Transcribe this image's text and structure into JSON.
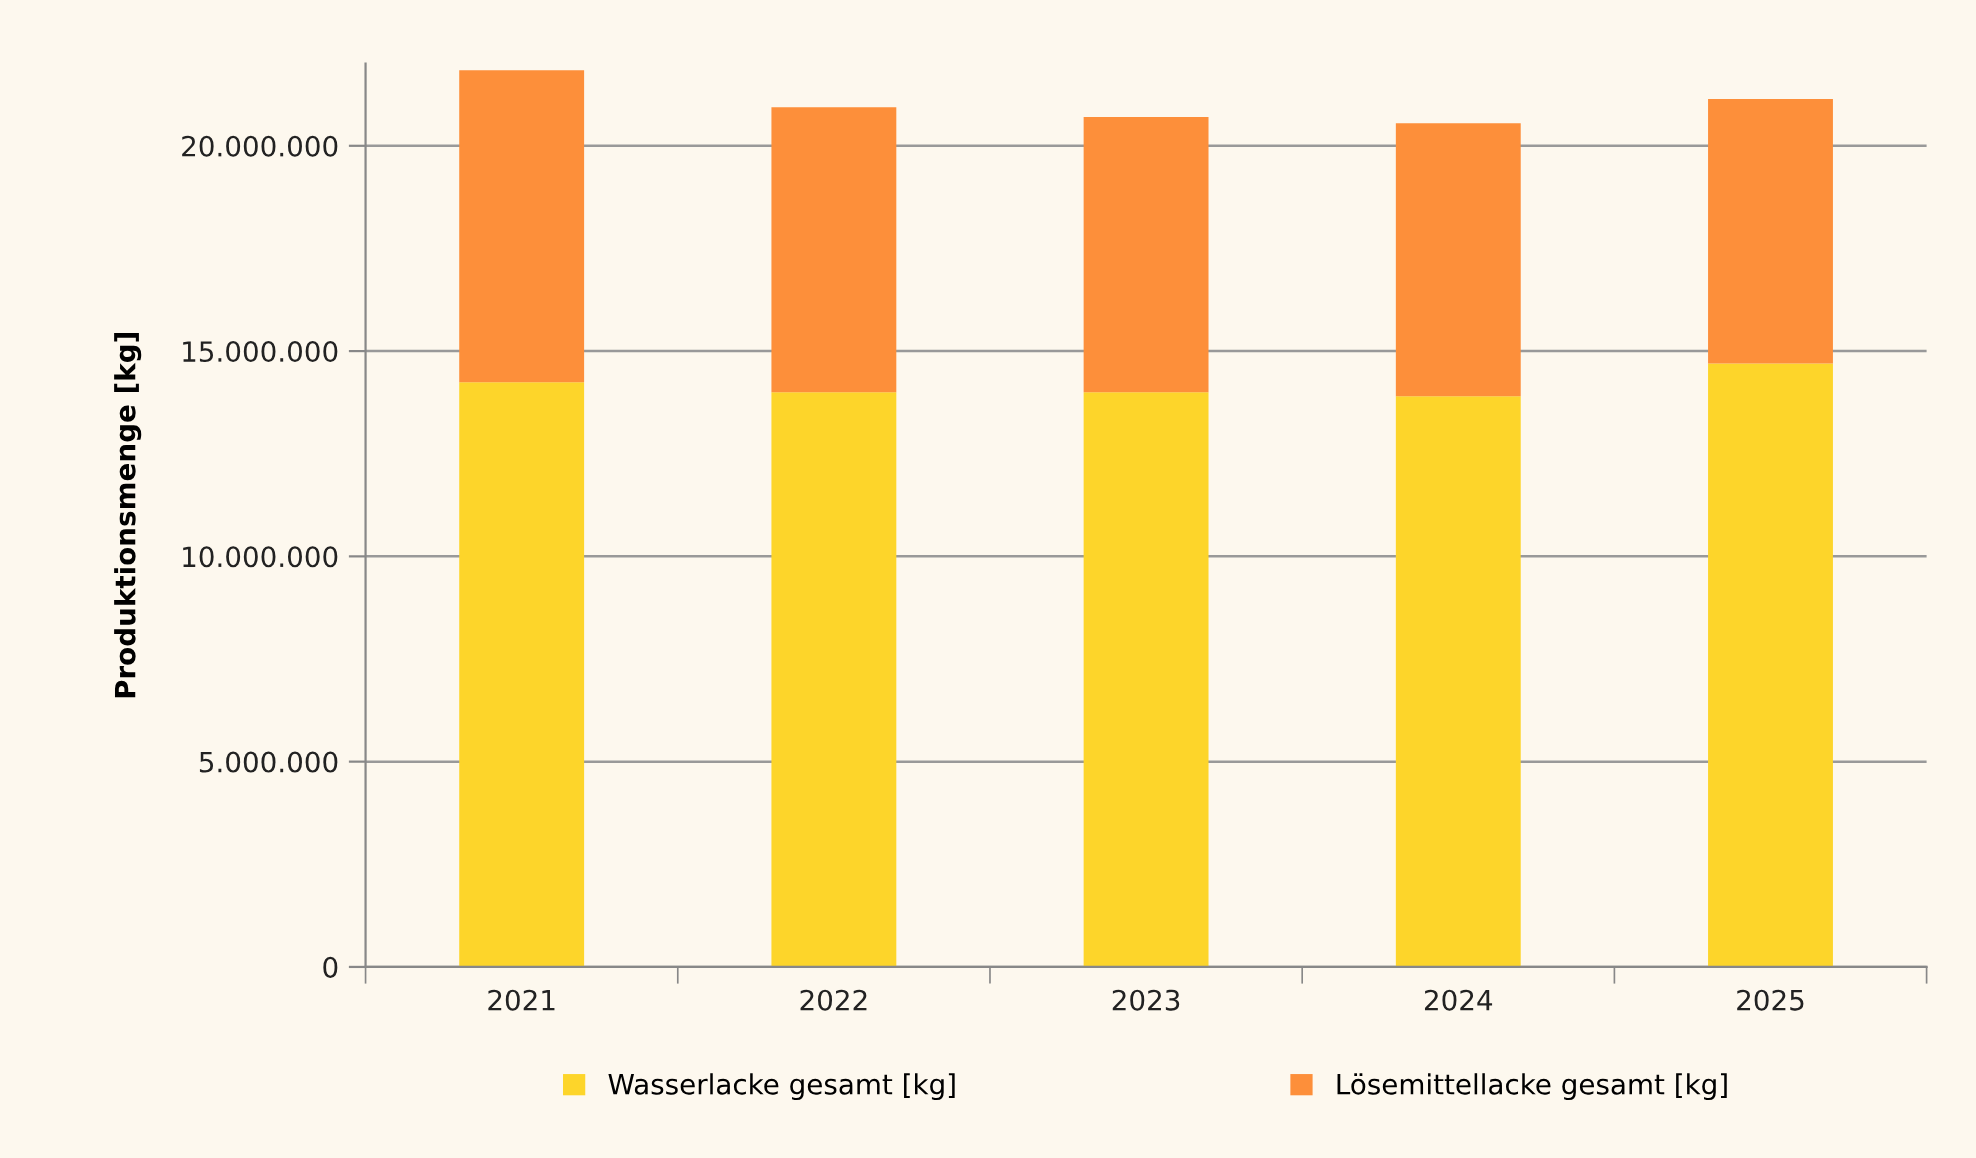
{
  "chart_data": {
    "type": "bar",
    "stacked": true,
    "ylabel": "Produktionsmenge [kg]",
    "categories": [
      "2021",
      "2022",
      "2023",
      "2024",
      "2025"
    ],
    "series": [
      {
        "name": "Wasserlacke gesamt [kg]",
        "color": "#fdd52a",
        "values": [
          14240000,
          14000000,
          14000000,
          13900000,
          14700000
        ]
      },
      {
        "name": "Lösemittellacke gesamt [kg]",
        "color": "#fd8f3a",
        "values": [
          7600000,
          6940000,
          6700000,
          6650000,
          6440000
        ]
      }
    ],
    "ylim": [
      0,
      22000000
    ],
    "yticks": [
      0,
      {
        "value": 5000000,
        "label": "5.000.000"
      },
      {
        "value": 10000000,
        "label": "10.000.000"
      },
      {
        "value": 15000000,
        "label": "15.000.000"
      },
      {
        "value": 20000000,
        "label": "20.000.000"
      }
    ],
    "grid": "y",
    "legend": "bottom"
  }
}
